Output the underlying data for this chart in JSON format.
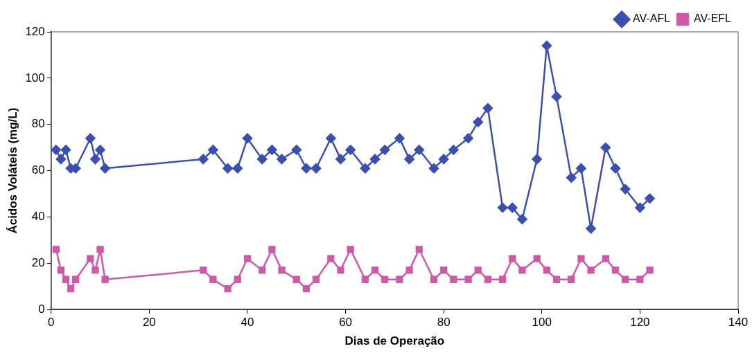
{
  "chart_data": {
    "type": "line",
    "xlabel": "Dias de Operação",
    "ylabel": "Ácidos Voláteis (mg/L)",
    "x": [
      1,
      2,
      3,
      4,
      5,
      8,
      9,
      10,
      11,
      31,
      33,
      36,
      38,
      40,
      43,
      45,
      47,
      50,
      52,
      54,
      57,
      59,
      61,
      64,
      66,
      68,
      71,
      73,
      75,
      78,
      80,
      82,
      85,
      87,
      89,
      92,
      94,
      96,
      99,
      101,
      103,
      106,
      108,
      110,
      113,
      115,
      117,
      120,
      122
    ],
    "series": [
      {
        "name": "AV-AFL",
        "color": "#3b4fb0",
        "marker": "diamond",
        "values": [
          69,
          65,
          69,
          61,
          61,
          74,
          65,
          69,
          61,
          65,
          69,
          61,
          61,
          74,
          65,
          69,
          65,
          69,
          61,
          61,
          74,
          65,
          69,
          61,
          65,
          69,
          74,
          65,
          69,
          61,
          65,
          69,
          74,
          81,
          87,
          44,
          44,
          39,
          65,
          114,
          92,
          57,
          61,
          35,
          70,
          61,
          52,
          44,
          48
        ]
      },
      {
        "name": "AV-EFL",
        "color": "#d058a8",
        "marker": "square",
        "values": [
          26,
          17,
          13,
          9,
          13,
          22,
          17,
          26,
          13,
          17,
          13,
          9,
          13,
          22,
          17,
          26,
          17,
          13,
          9,
          13,
          22,
          17,
          26,
          13,
          17,
          13,
          13,
          17,
          26,
          13,
          17,
          13,
          13,
          17,
          13,
          13,
          22,
          17,
          22,
          17,
          13,
          13,
          22,
          17,
          22,
          17,
          13,
          13,
          17
        ]
      }
    ],
    "xlim": [
      0,
      140
    ],
    "xticks": [
      0,
      20,
      40,
      60,
      80,
      100,
      120,
      140
    ],
    "ylim": [
      0,
      120
    ],
    "yticks": [
      0,
      20,
      40,
      60,
      80,
      100,
      120
    ],
    "grid": false,
    "legend": "top right",
    "line_style": "solid"
  }
}
